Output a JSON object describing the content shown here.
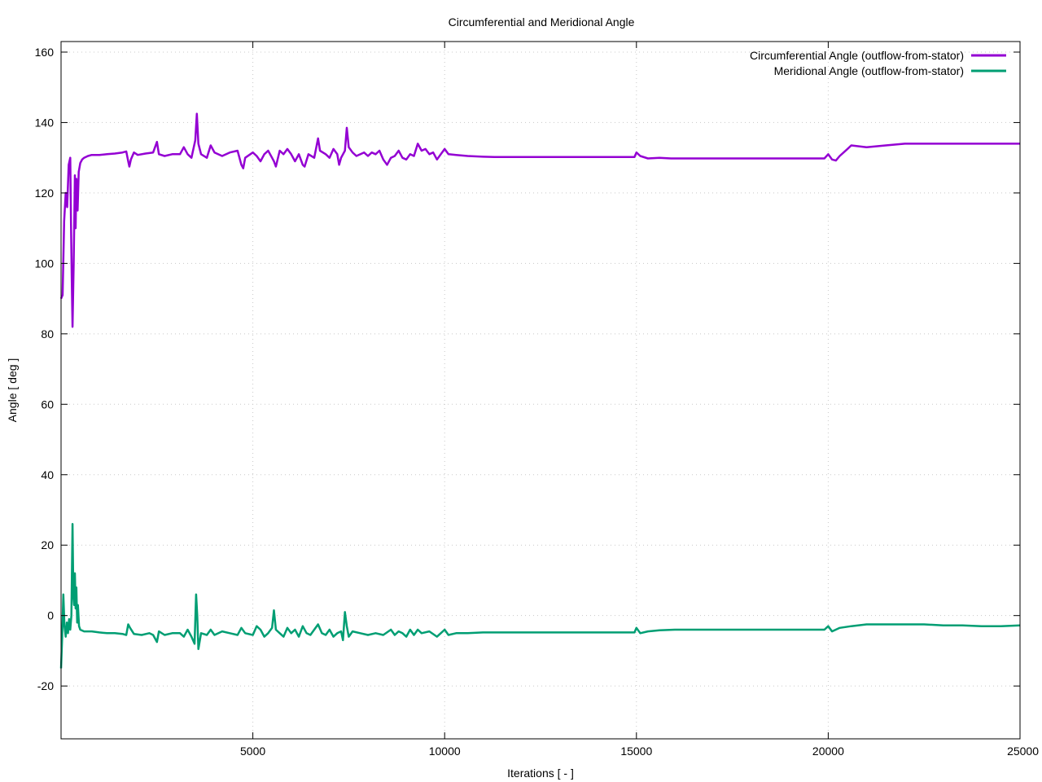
{
  "chart_data": {
    "type": "line",
    "title": "Circumferential and Meridional Angle",
    "xlabel": "Iterations [ - ]",
    "ylabel": "Angle [ deg ]",
    "xlim": [
      0,
      25000
    ],
    "ylim": [
      -35,
      163
    ],
    "xticks": [
      5000,
      10000,
      15000,
      20000,
      25000
    ],
    "yticks": [
      -20,
      0,
      20,
      40,
      60,
      80,
      100,
      120,
      140,
      160
    ],
    "grid": true,
    "legend_position": "top-right",
    "series": [
      {
        "name": "Circumferential Angle (outflow-from-stator)",
        "color": "#9400d3",
        "points": [
          [
            0,
            90
          ],
          [
            40,
            91
          ],
          [
            80,
            112
          ],
          [
            120,
            120
          ],
          [
            160,
            116
          ],
          [
            200,
            128
          ],
          [
            240,
            130
          ],
          [
            260,
            110
          ],
          [
            280,
            95
          ],
          [
            300,
            82
          ],
          [
            330,
            100
          ],
          [
            360,
            125
          ],
          [
            380,
            110
          ],
          [
            400,
            124
          ],
          [
            430,
            115
          ],
          [
            460,
            126
          ],
          [
            500,
            128.5
          ],
          [
            550,
            129.5
          ],
          [
            600,
            130
          ],
          [
            700,
            130.5
          ],
          [
            800,
            130.8
          ],
          [
            1000,
            130.8
          ],
          [
            1200,
            131
          ],
          [
            1400,
            131.2
          ],
          [
            1600,
            131.5
          ],
          [
            1700,
            131.8
          ],
          [
            1750,
            129
          ],
          [
            1780,
            127.5
          ],
          [
            1820,
            129.5
          ],
          [
            1900,
            131.5
          ],
          [
            2000,
            130.8
          ],
          [
            2200,
            131.2
          ],
          [
            2400,
            131.5
          ],
          [
            2500,
            134.5
          ],
          [
            2550,
            131
          ],
          [
            2700,
            130.5
          ],
          [
            2900,
            131
          ],
          [
            3100,
            131
          ],
          [
            3200,
            133
          ],
          [
            3300,
            131
          ],
          [
            3400,
            130
          ],
          [
            3500,
            135
          ],
          [
            3540,
            142.5
          ],
          [
            3580,
            134
          ],
          [
            3650,
            131
          ],
          [
            3800,
            130
          ],
          [
            3900,
            133.5
          ],
          [
            4000,
            131.5
          ],
          [
            4200,
            130.5
          ],
          [
            4400,
            131.5
          ],
          [
            4600,
            132
          ],
          [
            4700,
            128
          ],
          [
            4750,
            127
          ],
          [
            4800,
            130
          ],
          [
            5000,
            131.5
          ],
          [
            5100,
            130.5
          ],
          [
            5200,
            129
          ],
          [
            5300,
            131
          ],
          [
            5400,
            132
          ],
          [
            5500,
            130
          ],
          [
            5550,
            129
          ],
          [
            5600,
            127.5
          ],
          [
            5700,
            132
          ],
          [
            5800,
            131
          ],
          [
            5900,
            132.5
          ],
          [
            6000,
            131
          ],
          [
            6100,
            129
          ],
          [
            6200,
            131
          ],
          [
            6300,
            128
          ],
          [
            6350,
            127.5
          ],
          [
            6450,
            131
          ],
          [
            6600,
            130
          ],
          [
            6700,
            135.5
          ],
          [
            6750,
            132
          ],
          [
            6900,
            131
          ],
          [
            7000,
            130
          ],
          [
            7100,
            132.5
          ],
          [
            7200,
            131
          ],
          [
            7250,
            128
          ],
          [
            7300,
            130
          ],
          [
            7400,
            132
          ],
          [
            7450,
            138.5
          ],
          [
            7500,
            133
          ],
          [
            7600,
            131.5
          ],
          [
            7700,
            130.5
          ],
          [
            7900,
            131.5
          ],
          [
            8000,
            130.5
          ],
          [
            8100,
            131.5
          ],
          [
            8200,
            131
          ],
          [
            8300,
            132
          ],
          [
            8400,
            129.5
          ],
          [
            8500,
            128
          ],
          [
            8600,
            130
          ],
          [
            8700,
            130.5
          ],
          [
            8800,
            132
          ],
          [
            8900,
            130
          ],
          [
            9000,
            129.5
          ],
          [
            9100,
            131
          ],
          [
            9200,
            130.5
          ],
          [
            9300,
            134
          ],
          [
            9400,
            132
          ],
          [
            9500,
            132.5
          ],
          [
            9600,
            131
          ],
          [
            9700,
            131.5
          ],
          [
            9800,
            129.5
          ],
          [
            9900,
            131
          ],
          [
            10000,
            132.5
          ],
          [
            10100,
            131
          ],
          [
            10300,
            130.8
          ],
          [
            10600,
            130.5
          ],
          [
            11000,
            130.3
          ],
          [
            11300,
            130.2
          ],
          [
            12000,
            130.2
          ],
          [
            13000,
            130.2
          ],
          [
            14000,
            130.2
          ],
          [
            14950,
            130.2
          ],
          [
            15000,
            131.5
          ],
          [
            15100,
            130.5
          ],
          [
            15300,
            129.8
          ],
          [
            15600,
            130
          ],
          [
            15900,
            129.8
          ],
          [
            16500,
            129.8
          ],
          [
            18000,
            129.8
          ],
          [
            19900,
            129.8
          ],
          [
            20000,
            131
          ],
          [
            20100,
            129.5
          ],
          [
            20200,
            129.2
          ],
          [
            20300,
            130.5
          ],
          [
            20500,
            132.5
          ],
          [
            20600,
            133.5
          ],
          [
            21000,
            133
          ],
          [
            21500,
            133.5
          ],
          [
            22000,
            134
          ],
          [
            22500,
            134
          ],
          [
            23000,
            134
          ],
          [
            23500,
            134
          ],
          [
            24000,
            134
          ],
          [
            24500,
            134
          ],
          [
            25000,
            134
          ]
        ]
      },
      {
        "name": "Meridional Angle (outflow-from-stator)",
        "color": "#009e73",
        "points": [
          [
            0,
            -15
          ],
          [
            30,
            -6
          ],
          [
            60,
            6
          ],
          [
            90,
            -3
          ],
          [
            120,
            -6
          ],
          [
            150,
            -2
          ],
          [
            180,
            -5
          ],
          [
            210,
            -1
          ],
          [
            240,
            -4
          ],
          [
            270,
            0
          ],
          [
            300,
            26
          ],
          [
            320,
            6
          ],
          [
            340,
            3
          ],
          [
            360,
            12
          ],
          [
            380,
            2
          ],
          [
            400,
            8
          ],
          [
            420,
            -2
          ],
          [
            440,
            3
          ],
          [
            470,
            -3
          ],
          [
            500,
            -4
          ],
          [
            600,
            -4.5
          ],
          [
            800,
            -4.5
          ],
          [
            1000,
            -4.8
          ],
          [
            1200,
            -5
          ],
          [
            1400,
            -5
          ],
          [
            1600,
            -5.2
          ],
          [
            1700,
            -5.5
          ],
          [
            1750,
            -2.5
          ],
          [
            1800,
            -3.5
          ],
          [
            1900,
            -5.2
          ],
          [
            2100,
            -5.5
          ],
          [
            2300,
            -5
          ],
          [
            2400,
            -5.5
          ],
          [
            2500,
            -7.5
          ],
          [
            2550,
            -4.5
          ],
          [
            2700,
            -5.5
          ],
          [
            2900,
            -5
          ],
          [
            3100,
            -5
          ],
          [
            3200,
            -6
          ],
          [
            3300,
            -4
          ],
          [
            3400,
            -6
          ],
          [
            3480,
            -8
          ],
          [
            3520,
            6
          ],
          [
            3550,
            0
          ],
          [
            3580,
            -9.5
          ],
          [
            3650,
            -5
          ],
          [
            3800,
            -5.5
          ],
          [
            3900,
            -4
          ],
          [
            4000,
            -5.5
          ],
          [
            4200,
            -4.5
          ],
          [
            4400,
            -5
          ],
          [
            4600,
            -5.5
          ],
          [
            4700,
            -3.5
          ],
          [
            4800,
            -5
          ],
          [
            5000,
            -5.5
          ],
          [
            5100,
            -3
          ],
          [
            5200,
            -4
          ],
          [
            5300,
            -6
          ],
          [
            5400,
            -5
          ],
          [
            5500,
            -3.5
          ],
          [
            5550,
            1.5
          ],
          [
            5600,
            -4
          ],
          [
            5700,
            -5
          ],
          [
            5800,
            -6
          ],
          [
            5900,
            -3.5
          ],
          [
            6000,
            -5
          ],
          [
            6100,
            -4
          ],
          [
            6200,
            -6
          ],
          [
            6300,
            -3
          ],
          [
            6400,
            -5
          ],
          [
            6500,
            -5.5
          ],
          [
            6600,
            -4
          ],
          [
            6700,
            -2.5
          ],
          [
            6800,
            -5
          ],
          [
            6900,
            -5.5
          ],
          [
            7000,
            -4
          ],
          [
            7100,
            -6
          ],
          [
            7200,
            -5
          ],
          [
            7300,
            -4.5
          ],
          [
            7350,
            -7
          ],
          [
            7400,
            1
          ],
          [
            7450,
            -3
          ],
          [
            7500,
            -6
          ],
          [
            7600,
            -4.5
          ],
          [
            7800,
            -5
          ],
          [
            8000,
            -5.5
          ],
          [
            8200,
            -5
          ],
          [
            8400,
            -5.5
          ],
          [
            8600,
            -4
          ],
          [
            8700,
            -5.5
          ],
          [
            8800,
            -4.5
          ],
          [
            8900,
            -5
          ],
          [
            9000,
            -6
          ],
          [
            9100,
            -4
          ],
          [
            9200,
            -5.5
          ],
          [
            9300,
            -4
          ],
          [
            9400,
            -5
          ],
          [
            9600,
            -4.5
          ],
          [
            9800,
            -6
          ],
          [
            9900,
            -5
          ],
          [
            10000,
            -4
          ],
          [
            10100,
            -5.5
          ],
          [
            10300,
            -5
          ],
          [
            10600,
            -5
          ],
          [
            11000,
            -4.8
          ],
          [
            12000,
            -4.8
          ],
          [
            13000,
            -4.8
          ],
          [
            14000,
            -4.8
          ],
          [
            14950,
            -4.8
          ],
          [
            15000,
            -3.5
          ],
          [
            15100,
            -5
          ],
          [
            15300,
            -4.5
          ],
          [
            15600,
            -4.2
          ],
          [
            16000,
            -4
          ],
          [
            18000,
            -4
          ],
          [
            19900,
            -4
          ],
          [
            20000,
            -3
          ],
          [
            20100,
            -4.5
          ],
          [
            20300,
            -3.5
          ],
          [
            20600,
            -3
          ],
          [
            21000,
            -2.5
          ],
          [
            21500,
            -2.5
          ],
          [
            22000,
            -2.5
          ],
          [
            22500,
            -2.5
          ],
          [
            23000,
            -2.8
          ],
          [
            23500,
            -2.8
          ],
          [
            24000,
            -3
          ],
          [
            24500,
            -3
          ],
          [
            25000,
            -2.8
          ]
        ]
      }
    ]
  }
}
